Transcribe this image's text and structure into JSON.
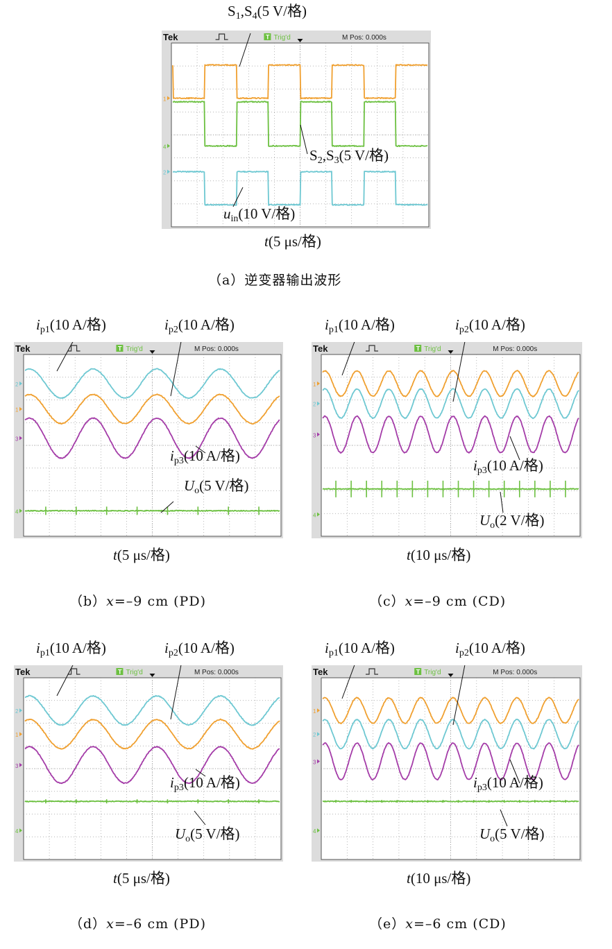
{
  "scope_header": {
    "brand": "Tek",
    "trigger_badge": "T",
    "trigger_status": "Trig'd",
    "mpos": "M Pos: 0.000s"
  },
  "colors": {
    "orange": "#f0a030",
    "green": "#6cc040",
    "cyan": "#6ec8d2",
    "purple": "#a43ca8",
    "grid": "#9a9a9a"
  },
  "marker_chars": {
    "ch1": "1",
    "ch2": "2",
    "ch3": "3",
    "ch4": "4"
  },
  "labels": {
    "s14_main": "S",
    "s14_sub1": "1",
    "s14_comma": ",S",
    "s14_sub2": "4",
    "s14_scale": "(5 V/格)",
    "s23_main": "S",
    "s23_sub1": "2",
    "s23_comma": ",S",
    "s23_sub2": "3",
    "s23_scale": "(5 V/格)",
    "uin_var": "u",
    "uin_sub": "in",
    "uin_scale": "(10 V/格)",
    "ip_var": "i",
    "ip1_sub": "p1",
    "ip2_sub": "p2",
    "ip3_sub": "p3",
    "ip_scale": "(10 A/格)",
    "uo_var": "U",
    "uo_sub": "o",
    "uo_scale_5v": "(5 V/格)",
    "uo_scale_2v": "(2 V/格)",
    "t_var": "t",
    "t_scale_5us": "(5 μs/格)",
    "t_scale_10us": "(10 μs/格)"
  },
  "captions": {
    "a": {
      "prefix": "（a）",
      "text": "逆变器输出波形"
    },
    "b": {
      "prefix": "（b）",
      "var": "x",
      "value": "=–9 cm (PD)"
    },
    "c": {
      "prefix": "（c）",
      "var": "x",
      "value": "=–9 cm (CD)"
    },
    "d": {
      "prefix": "（d）",
      "var": "x",
      "value": "=–6 cm (PD)"
    },
    "e": {
      "prefix": "（e）",
      "var": "x",
      "value": "=–6 cm (CD)"
    }
  }
}
